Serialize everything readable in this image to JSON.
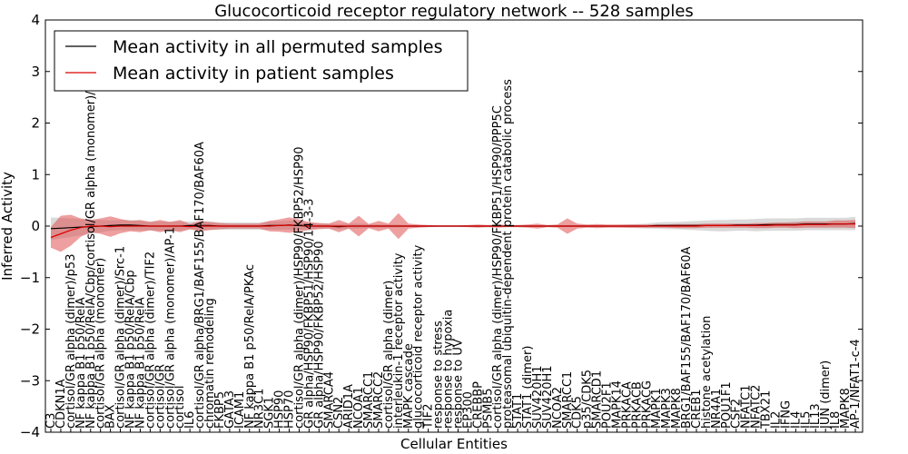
{
  "chart_data": {
    "type": "line",
    "title": "Glucocorticoid receptor regulatory network -- 528 samples",
    "xlabel": "Cellular Entities",
    "ylabel": "Inferred Activity",
    "ylim": [
      -4,
      4
    ],
    "yticks": [
      "4",
      "3",
      "2",
      "1",
      "0",
      "−1",
      "−2",
      "−3",
      "−4"
    ],
    "legend_position": "top-left",
    "colors": {
      "perm": "#000000",
      "patient": "#dd0000",
      "perm_band": "#bbbbbb",
      "patient_band": "#e05050"
    },
    "categories": [
      "C3",
      "CDKN1A",
      "cortisol/GR alpha (dimer)/p53",
      "NF kappa B1 p50/RelA",
      "NF kappa B1 p50/RelA/Cbp/cortisol/GR alpha (monomer)/AP-2",
      "cortisol/GR alpha (monomer)",
      "BAX",
      "cortisol/GR alpha (dimer)/Src-1",
      "NF kappa B1 p50/RelA/Cbp",
      "NF kappa B1 p50/RelA",
      "cortisol/GR alpha (dimer)/TIF2",
      "cortisol/GR",
      "cortisol/GR alpha (monomer)/AP-1",
      "cortisol",
      "IL6",
      "cortisol/GR alpha/BRG1/BAF155/BAF170/BAF60A",
      "chromatin remodeling",
      "FKBP5",
      "GATA3",
      "ICAM1",
      "NF kappa B1 p50/RelA/PKAc",
      "NR3C1",
      "SGK1",
      "HSP90",
      "HSP70",
      "cortisol/GR alpha (dimer)/HSP90/FKBP52/HSP90",
      "GR alpha/HSP90/FKBP51/HSP90/14-3-3",
      "GR alpha/HSP90/FKBP52/HSP90",
      "SMARCA4",
      "CSN2",
      "ARID1A",
      "NCOA1",
      "SMARCC1",
      "SMARCC2",
      "cortisol/GR alpha (dimer)",
      "interleukin-1 receptor activity",
      "MAPK cascade",
      "glucocorticoid receptor activity",
      "TIF2",
      "response to stress",
      "response to hypoxia",
      "response to UV",
      "EP300",
      "CREBBP",
      "PSMB5",
      "cortisol/GR alpha (dimer)/HSP90/FKBP51/HSP90/PPP5C",
      "proteasomal ubiquitin-dependent protein catabolic process",
      "STAT1",
      "STAT1 (dimer)",
      "SUV420H1",
      "SUV420H1",
      "NCOA2",
      "SMARCC1",
      "CDK5",
      "p35/CDK5",
      "SMARCD1",
      "POU2F1",
      "MAPK14",
      "PRKACA",
      "PRKACB",
      "PRKACG",
      "MAPK1",
      "MAPK3",
      "MAPK8",
      "BRG1/BAF155/BAF170/BAF60A",
      "CREB1",
      "histone acetylation",
      "NR4A1",
      "POU1F1",
      "CSF2",
      "NFATC1",
      "NFATC2",
      "TBX21",
      "IL2",
      "IFNG",
      "IL4",
      "IL5",
      "IL13",
      "JUN (dimer)",
      "IL8",
      "MAPK8",
      "AP-1/NFAT1-c-4"
    ],
    "permuted_mean": [
      -0.05,
      -0.04,
      -0.03,
      -0.02,
      -0.01,
      0.0,
      0.01,
      0.02,
      0.02,
      0.01,
      0.0,
      0.0,
      0.0,
      0.0,
      0.01,
      0.01,
      0.01,
      0.0,
      0.0,
      0.0,
      0.0,
      0.0,
      0.01,
      0.01,
      0.02,
      0.01,
      0.0,
      0.0,
      0.0,
      -0.01,
      0.0,
      0.0,
      0.0,
      0.0,
      0.0,
      0.0,
      0.0,
      0.0,
      0.0,
      0.0,
      0.0,
      0.0,
      0.0,
      0.0,
      0.0,
      0.0,
      0.0,
      0.0,
      0.0,
      0.0,
      0.0,
      0.0,
      0.0,
      0.0,
      0.0,
      0.0,
      0.0,
      0.0,
      0.0,
      0.0,
      0.0,
      0.01,
      0.01,
      0.01,
      0.01,
      0.01,
      0.01,
      0.01,
      0.01,
      0.02,
      0.02,
      0.02,
      0.03,
      0.03,
      0.03,
      0.03,
      0.04,
      0.04,
      0.04,
      0.04,
      0.04,
      0.05
    ],
    "permuted_sd": [
      0.22,
      0.2,
      0.18,
      0.16,
      0.14,
      0.12,
      0.1,
      0.1,
      0.1,
      0.09,
      0.09,
      0.09,
      0.09,
      0.09,
      0.08,
      0.08,
      0.08,
      0.07,
      0.07,
      0.07,
      0.07,
      0.07,
      0.08,
      0.08,
      0.09,
      0.08,
      0.06,
      0.05,
      0.05,
      0.05,
      0.05,
      0.05,
      0.04,
      0.03,
      0.03,
      0.03,
      0.02,
      0.02,
      0.02,
      0.02,
      0.02,
      0.02,
      0.02,
      0.02,
      0.02,
      0.02,
      0.02,
      0.02,
      0.02,
      0.02,
      0.02,
      0.02,
      0.02,
      0.02,
      0.02,
      0.02,
      0.02,
      0.02,
      0.03,
      0.04,
      0.05,
      0.06,
      0.07,
      0.07,
      0.08,
      0.09,
      0.1,
      0.11,
      0.11,
      0.11,
      0.11,
      0.12,
      0.12,
      0.12,
      0.12,
      0.12,
      0.12,
      0.12,
      0.12,
      0.12,
      0.12,
      0.13
    ],
    "patient_mean": [
      -0.22,
      -0.15,
      -0.08,
      -0.03,
      0.0,
      0.0,
      -0.01,
      0.0,
      0.0,
      0.0,
      0.0,
      0.0,
      0.0,
      0.0,
      -0.01,
      0.0,
      0.0,
      0.0,
      0.0,
      0.0,
      0.0,
      0.0,
      0.0,
      0.01,
      0.02,
      0.01,
      0.0,
      0.0,
      0.0,
      0.0,
      0.0,
      0.0,
      0.0,
      0.0,
      0.0,
      0.0,
      0.0,
      0.0,
      0.0,
      0.0,
      0.0,
      0.0,
      0.0,
      0.0,
      0.0,
      0.0,
      0.0,
      0.0,
      0.0,
      0.0,
      0.0,
      0.0,
      0.0,
      0.0,
      0.0,
      0.0,
      0.0,
      0.0,
      0.0,
      0.0,
      0.0,
      0.0,
      0.0,
      0.0,
      0.0,
      0.0,
      0.01,
      0.01,
      0.01,
      0.01,
      0.01,
      0.01,
      0.01,
      0.02,
      0.02,
      0.02,
      0.03,
      0.03,
      0.03,
      0.04,
      0.04,
      0.04
    ],
    "patient_sd": [
      0.2,
      0.35,
      0.3,
      0.18,
      0.12,
      0.15,
      0.2,
      0.14,
      0.1,
      0.12,
      0.08,
      0.12,
      0.08,
      0.12,
      0.05,
      0.1,
      0.08,
      0.06,
      0.05,
      0.05,
      0.05,
      0.05,
      0.1,
      0.12,
      0.15,
      0.12,
      0.08,
      0.06,
      0.05,
      0.12,
      0.05,
      0.2,
      0.04,
      0.1,
      0.05,
      0.25,
      0.05,
      0.03,
      0.02,
      0.01,
      0.01,
      0.01,
      0.02,
      0.03,
      0.02,
      0.03,
      0.02,
      0.02,
      0.03,
      0.05,
      0.02,
      0.03,
      0.15,
      0.05,
      0.03,
      0.04,
      0.03,
      0.03,
      0.03,
      0.03,
      0.03,
      0.03,
      0.03,
      0.04,
      0.04,
      0.04,
      0.04,
      0.04,
      0.04,
      0.04,
      0.04,
      0.05,
      0.05,
      0.05,
      0.05,
      0.06,
      0.06,
      0.06,
      0.06,
      0.07,
      0.07,
      0.08
    ],
    "legend": [
      {
        "key": "perm",
        "label": "Mean activity in all permuted samples"
      },
      {
        "key": "patient",
        "label": "Mean activity in patient samples"
      }
    ]
  }
}
